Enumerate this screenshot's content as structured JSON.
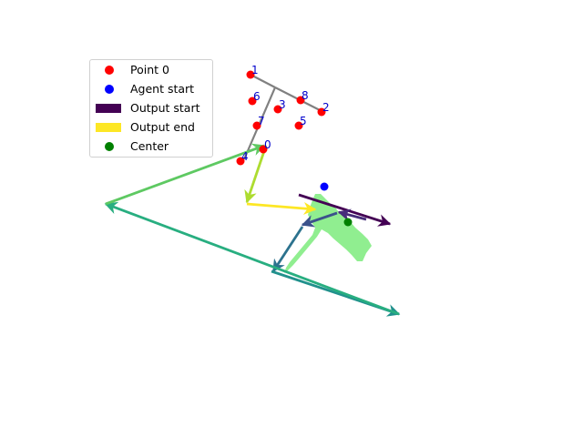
{
  "colors": {
    "point": "#ff0000",
    "agent_start": "#0000ff",
    "center": "#008000",
    "output_start": "#440154",
    "output_end": "#fde725",
    "skeleton": "#808080",
    "shape_fill": "#90ee90",
    "point_label": "#0000cc"
  },
  "legend": {
    "items": [
      {
        "label": "Point 0",
        "kind": "marker",
        "color": "#ff0000"
      },
      {
        "label": "Agent start",
        "kind": "marker",
        "color": "#0000ff"
      },
      {
        "label": "Output start",
        "kind": "patch",
        "color": "#440154"
      },
      {
        "label": "Output end",
        "kind": "patch",
        "color": "#fde725"
      },
      {
        "label": "Center",
        "kind": "marker",
        "color": "#008000"
      }
    ]
  },
  "points": [
    {
      "label": "0"
    },
    {
      "label": "1"
    },
    {
      "label": "2"
    },
    {
      "label": "3"
    },
    {
      "label": "4"
    },
    {
      "label": "5"
    },
    {
      "label": "6"
    },
    {
      "label": "7"
    },
    {
      "label": "8"
    }
  ],
  "arrows": {
    "count": 9,
    "colormap": "viridis"
  }
}
